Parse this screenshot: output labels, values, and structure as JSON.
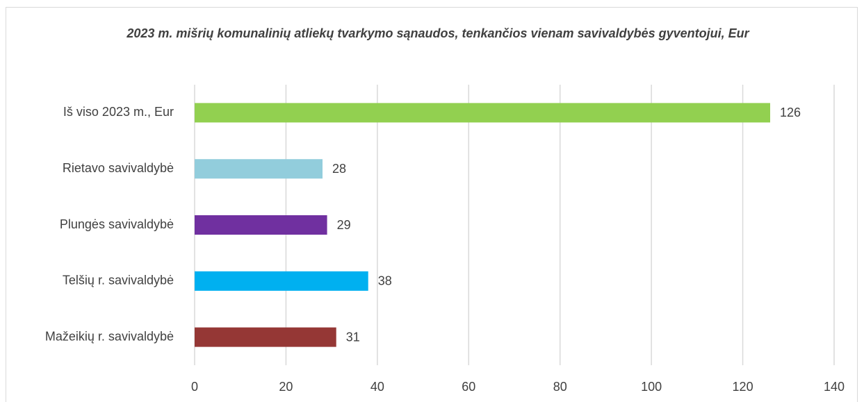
{
  "chart_data": {
    "type": "barh",
    "title": "2023 m. mišrių komunalinių atliekų tvarkymo sąnaudos, tenkančios  vienam savivaldybės gyventojui, Eur",
    "categories": [
      "Iš viso 2023 m., Eur",
      "Rietavo savivaldybė",
      "Plungės savivaldybė",
      "Telšių r. savivaldybė",
      "Mažeikių r. savivaldybė"
    ],
    "values": [
      126,
      28,
      29,
      38,
      31
    ],
    "colors": [
      "#92d050",
      "#92cddc",
      "#7030a0",
      "#00b0f0",
      "#953735"
    ],
    "xlim": [
      0,
      140
    ],
    "xticks": [
      0,
      20,
      40,
      60,
      80,
      100,
      120,
      140
    ],
    "grid": true
  }
}
